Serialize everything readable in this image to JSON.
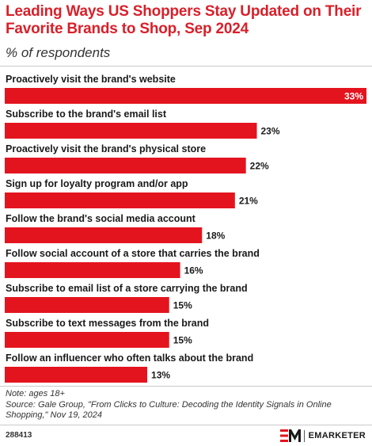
{
  "header": {
    "title": "Leading Ways US Shoppers Stay Updated on Their Favorite Brands to Shop, Sep 2024",
    "subtitle": "% of respondents"
  },
  "chart_data": {
    "type": "bar",
    "orientation": "horizontal",
    "categories": [
      "Proactively visit the brand's website",
      "Subscribe to the brand's email list",
      "Proactively visit the brand's physical store",
      "Sign up for loyalty program and/or app",
      "Follow the brand's social media account",
      "Follow social account of a store that carries the brand",
      "Subscribe to email list of a store carrying the brand",
      "Subscribe to text messages from the brand",
      "Follow an influencer who often talks about the brand"
    ],
    "values": [
      33,
      23,
      22,
      21,
      18,
      16,
      15,
      15,
      13
    ],
    "value_labels": [
      "33%",
      "23%",
      "22%",
      "21%",
      "18%",
      "16%",
      "15%",
      "15%",
      "13%"
    ],
    "title": "Leading Ways US Shoppers Stay Updated on Their Favorite Brands to Shop, Sep 2024",
    "subtitle": "% of respondents",
    "xlabel": "",
    "ylabel": "",
    "xlim": [
      0,
      33
    ],
    "grid": false,
    "legend": "none",
    "bar_color": "#e3141e"
  },
  "footer": {
    "note": "Note: ages 18+",
    "source": "Source: Gale Group, \"From Clicks to Culture: Decoding the Identity Signals in Online Shopping,\" Nov 19, 2024",
    "chart_id": "288413",
    "brand_name": "EMARKETER",
    "brand_color": "#e3141e"
  }
}
